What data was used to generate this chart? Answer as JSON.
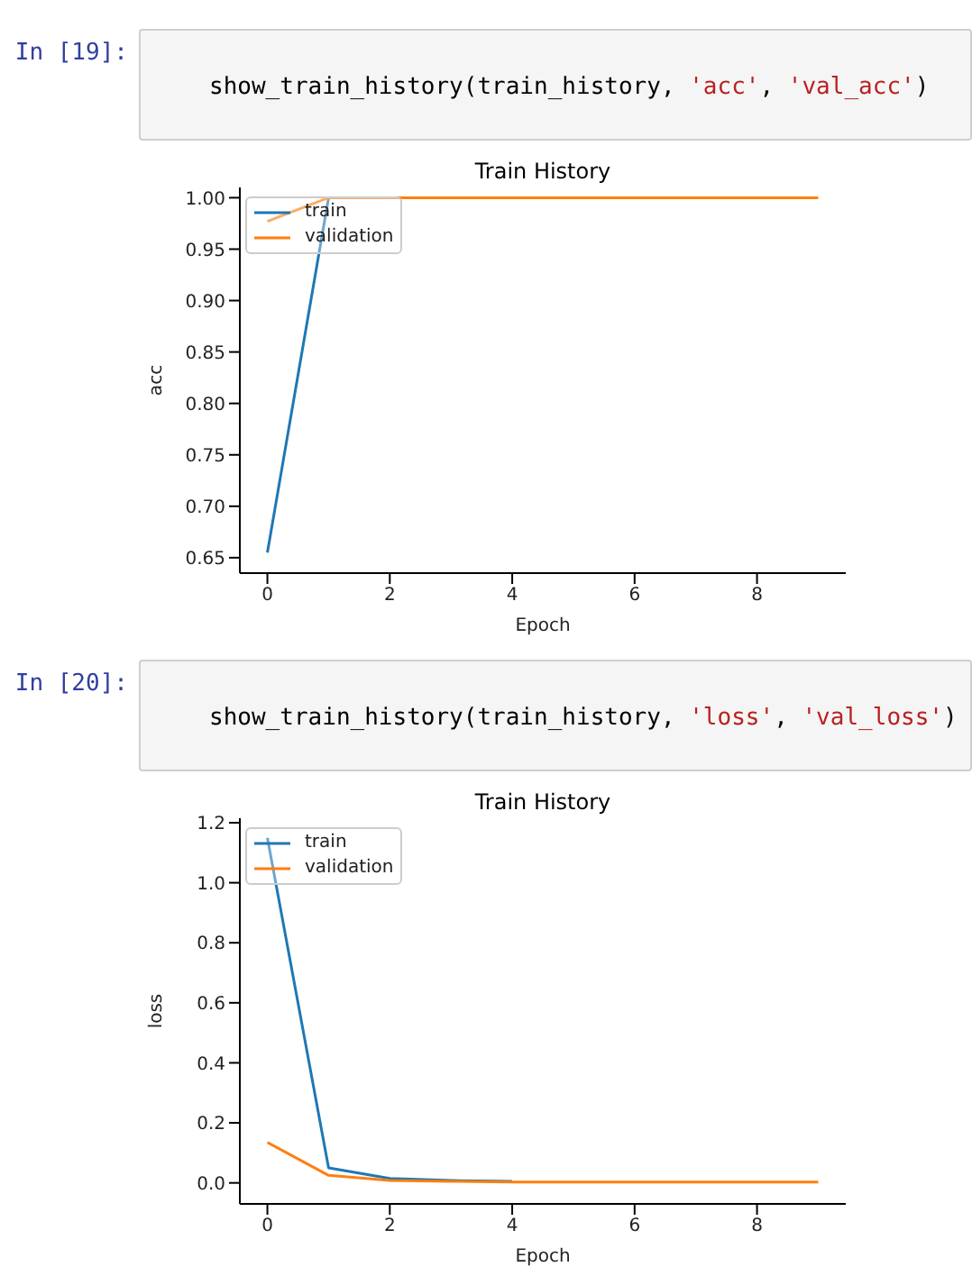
{
  "chart_data": [
    {
      "type": "line",
      "title": "Train History",
      "xlabel": "Epoch",
      "ylabel": "acc",
      "annotations": [
        "In [19]:",
        "show_train_history(train_history, 'acc', 'val_acc')"
      ],
      "x": [
        0,
        1,
        2,
        3,
        4,
        5,
        6,
        7,
        8,
        9
      ],
      "series": [
        {
          "name": "train",
          "color": "#1f77b4",
          "values": [
            0.655,
            1.0,
            null,
            null,
            null,
            null,
            null,
            null,
            null,
            null
          ]
        },
        {
          "name": "validation",
          "color": "#ff7f0e",
          "values": [
            0.977,
            1.0,
            1.0,
            1.0,
            1.0,
            1.0,
            1.0,
            1.0,
            1.0,
            1.0
          ]
        }
      ],
      "xlim": [
        -0.45,
        9.45
      ],
      "xticks": [
        0,
        2,
        4,
        6,
        8
      ],
      "ylim": [
        0.635,
        1.01
      ],
      "yticks": [
        {
          "value": 0.65,
          "label": "0.65"
        },
        {
          "value": 0.7,
          "label": "0.70"
        },
        {
          "value": 0.75,
          "label": "0.75"
        },
        {
          "value": 0.8,
          "label": "0.80"
        },
        {
          "value": 0.85,
          "label": "0.85"
        },
        {
          "value": 0.9,
          "label": "0.90"
        },
        {
          "value": 0.95,
          "label": "0.95"
        },
        {
          "value": 1.0,
          "label": "1.00"
        }
      ],
      "grid": false,
      "legend": "top left",
      "marker": "none",
      "line_style": "solid"
    },
    {
      "type": "line",
      "title": "Train History",
      "xlabel": "Epoch",
      "ylabel": "loss",
      "annotations": [
        "In [20]:",
        "show_train_history(train_history, 'loss', 'val_loss')"
      ],
      "x": [
        0,
        1,
        2,
        3,
        4,
        5,
        6,
        7,
        8,
        9
      ],
      "series": [
        {
          "name": "train",
          "color": "#1f77b4",
          "values": [
            1.15,
            0.05,
            0.015,
            0.008,
            0.005,
            null,
            null,
            null,
            null,
            null
          ]
        },
        {
          "name": "validation",
          "color": "#ff7f0e",
          "values": [
            0.135,
            0.025,
            0.008,
            0.005,
            0.003,
            0.003,
            0.003,
            0.003,
            0.003,
            0.003
          ]
        }
      ],
      "xlim": [
        -0.45,
        9.45
      ],
      "xticks": [
        0,
        2,
        4,
        6,
        8
      ],
      "ylim": [
        -0.07,
        1.215
      ],
      "yticks": [
        {
          "value": 0,
          "label": "0.0"
        },
        {
          "value": 0.2,
          "label": "0.2"
        },
        {
          "value": 0.4,
          "label": "0.4"
        },
        {
          "value": 0.6,
          "label": "0.6"
        },
        {
          "value": 0.8,
          "label": "0.8"
        },
        {
          "value": 1.0,
          "label": "1.0"
        },
        {
          "value": 1.2,
          "label": "1.2"
        }
      ],
      "grid": false,
      "legend": "top left",
      "marker": "none",
      "line_style": "solid"
    }
  ]
}
